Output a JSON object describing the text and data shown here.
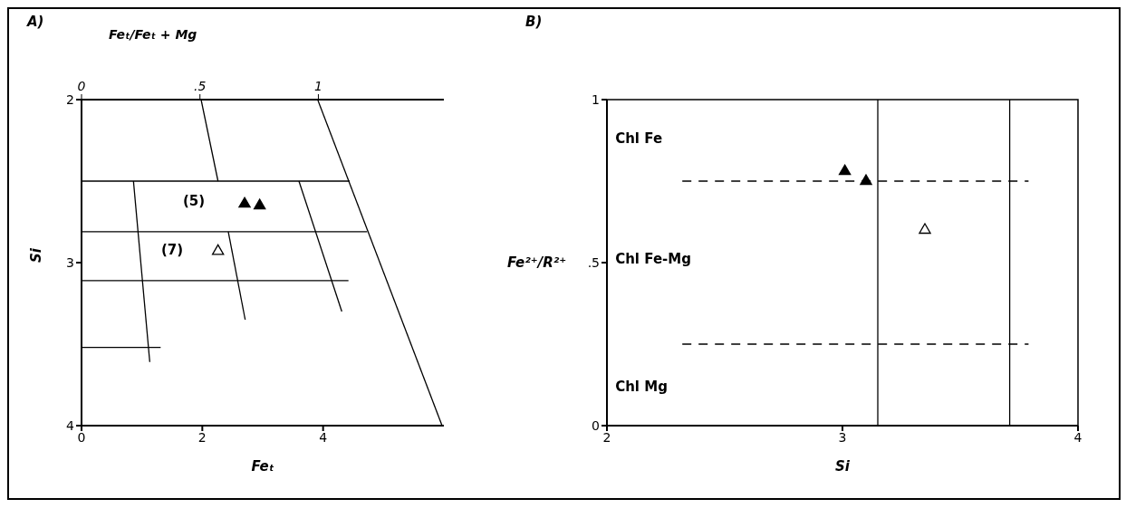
{
  "chart_data": [
    {
      "type": "scatter",
      "title": "A)",
      "xlabel": "Feₜ",
      "ylabel": "Si",
      "x2label": "Feₜ/Feₜ + Mg",
      "xlim": [
        0,
        6
      ],
      "xticks": [
        0,
        2,
        4
      ],
      "x2lim": [
        0,
        1.53
      ],
      "x2ticks": [
        0,
        {
          "value": 0.5,
          "label": ".5"
        },
        1
      ],
      "ylim": [
        4,
        2
      ],
      "yticks": [
        2,
        3,
        4
      ],
      "annotations": [
        "(5)",
        "(7)"
      ],
      "series": [
        {
          "type": "line",
          "color": "#000000",
          "x": [
            3.91,
            5.97
          ],
          "values": [
            2,
            4
          ]
        },
        {
          "type": "line",
          "color": "#000000",
          "x": [
            0,
            4.44
          ],
          "values": [
            2.5,
            2.5
          ]
        },
        {
          "type": "line",
          "color": "#000000",
          "x": [
            0,
            4.73
          ],
          "values": [
            2.81,
            2.81
          ]
        },
        {
          "type": "line",
          "color": "#000000",
          "x": [
            0,
            4.42
          ],
          "values": [
            3.11,
            3.11
          ]
        },
        {
          "type": "line",
          "color": "#000000",
          "x": [
            0,
            1.31
          ],
          "values": [
            3.52,
            3.52
          ]
        },
        {
          "type": "line",
          "color": "#000000",
          "x": [
            1.98,
            2.26
          ],
          "values": [
            2,
            2.5
          ]
        },
        {
          "type": "line",
          "color": "#000000",
          "x": [
            0.86,
            1.13
          ],
          "values": [
            2.5,
            3.61
          ]
        },
        {
          "type": "line",
          "color": "#000000",
          "x": [
            2.43,
            2.71
          ],
          "values": [
            2.81,
            3.35
          ]
        },
        {
          "type": "line",
          "color": "#000000",
          "x": [
            3.6,
            4.31
          ],
          "values": [
            2.5,
            3.3
          ]
        },
        {
          "type": "scatter",
          "marker": "triangle",
          "color": "#000000",
          "x": [
            2.7,
            2.95
          ],
          "values": [
            2.64,
            2.65
          ]
        },
        {
          "type": "scatter",
          "marker": "triangle",
          "color": "#ffffff",
          "x": [
            2.26
          ],
          "values": [
            2.93
          ]
        }
      ]
    },
    {
      "type": "scatter",
      "title": "B)",
      "xlabel": "Si",
      "ylabel": "Fe²⁺/R²⁺",
      "xlim": [
        2,
        4
      ],
      "xticks": [
        2,
        3,
        4
      ],
      "ylim": [
        0,
        1
      ],
      "yticks": [
        0,
        {
          "value": 0.5,
          "label": ".5"
        },
        1
      ],
      "ref_lines": [
        {
          "axis": "x",
          "value": 3.15
        },
        {
          "axis": "x",
          "value": 3.71
        }
      ],
      "annotations": [
        "Chl Fe",
        "Chl Fe-Mg",
        "Chl Mg"
      ],
      "series": [
        {
          "type": "line",
          "color": "#000000",
          "line_style": "dashed",
          "x": [
            2.32,
            3.79
          ],
          "values": [
            0.75,
            0.75
          ]
        },
        {
          "type": "line",
          "color": "#000000",
          "line_style": "dashed",
          "x": [
            2.32,
            3.79
          ],
          "values": [
            0.25,
            0.25
          ]
        },
        {
          "type": "scatter",
          "marker": "triangle",
          "color": "#000000",
          "x": [
            3.01,
            3.1
          ],
          "values": [
            0.78,
            0.75
          ]
        },
        {
          "type": "scatter",
          "marker": "triangle",
          "color": "#ffffff",
          "x": [
            3.35
          ],
          "values": [
            0.6
          ]
        }
      ]
    }
  ]
}
